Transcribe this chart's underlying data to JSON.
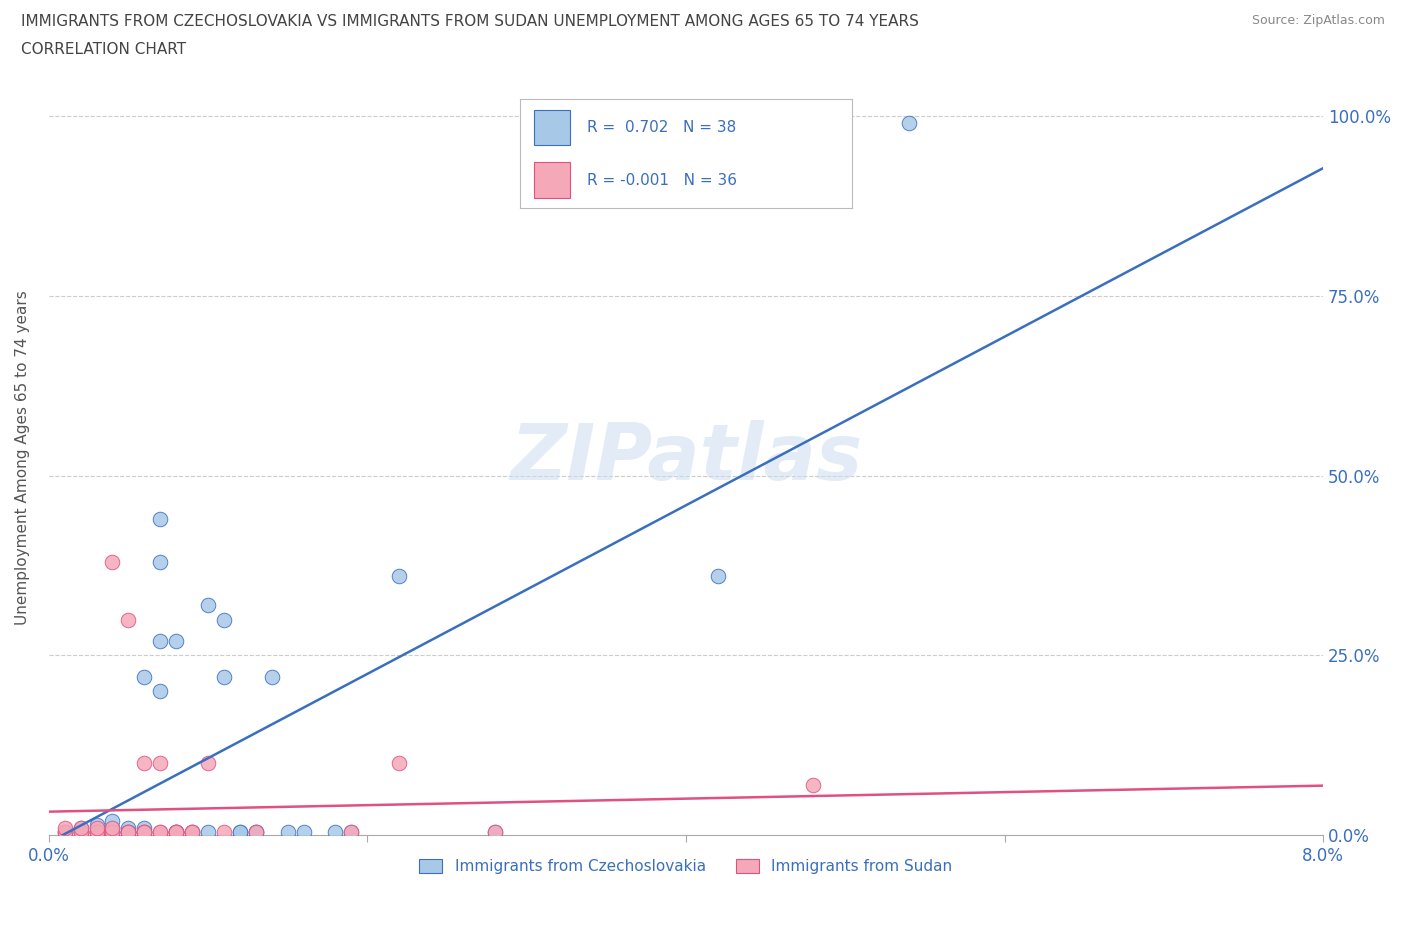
{
  "title_line1": "IMMIGRANTS FROM CZECHOSLOVAKIA VS IMMIGRANTS FROM SUDAN UNEMPLOYMENT AMONG AGES 65 TO 74 YEARS",
  "title_line2": "CORRELATION CHART",
  "source": "Source: ZipAtlas.com",
  "xlabel_label": "Immigrants from Czechoslovakia",
  "xlabel_label2": "Immigrants from Sudan",
  "ylabel": "Unemployment Among Ages 65 to 74 years",
  "xlim": [
    0.0,
    0.08
  ],
  "ylim": [
    0.0,
    1.05
  ],
  "x_ticks": [
    0.0,
    0.02,
    0.04,
    0.06,
    0.08
  ],
  "x_tick_labels": [
    "0.0%",
    "",
    "",
    "",
    "8.0%"
  ],
  "y_ticks": [
    0.0,
    0.25,
    0.5,
    0.75,
    1.0
  ],
  "y_tick_labels_right": [
    "0.0%",
    "25.0%",
    "50.0%",
    "75.0%",
    "100.0%"
  ],
  "r_czech": 0.702,
  "n_czech": 38,
  "r_sudan": -0.001,
  "n_sudan": 36,
  "color_czech": "#a8c8e8",
  "color_sudan": "#f4a8b8",
  "color_line_czech": "#3a6fbf",
  "color_line_sudan": "#e05080",
  "watermark": "ZIPatlas",
  "czech_scatter": [
    [
      0.001,
      0.005
    ],
    [
      0.002,
      0.01
    ],
    [
      0.003,
      0.005
    ],
    [
      0.003,
      0.015
    ],
    [
      0.004,
      0.005
    ],
    [
      0.004,
      0.01
    ],
    [
      0.004,
      0.02
    ],
    [
      0.005,
      0.005
    ],
    [
      0.005,
      0.01
    ],
    [
      0.005,
      0.005
    ],
    [
      0.006,
      0.005
    ],
    [
      0.006,
      0.01
    ],
    [
      0.006,
      0.22
    ],
    [
      0.007,
      0.44
    ],
    [
      0.007,
      0.38
    ],
    [
      0.007,
      0.27
    ],
    [
      0.007,
      0.2
    ],
    [
      0.008,
      0.005
    ],
    [
      0.008,
      0.005
    ],
    [
      0.008,
      0.27
    ],
    [
      0.009,
      0.005
    ],
    [
      0.01,
      0.005
    ],
    [
      0.01,
      0.32
    ],
    [
      0.011,
      0.22
    ],
    [
      0.011,
      0.3
    ],
    [
      0.012,
      0.005
    ],
    [
      0.012,
      0.005
    ],
    [
      0.013,
      0.005
    ],
    [
      0.013,
      0.005
    ],
    [
      0.014,
      0.22
    ],
    [
      0.015,
      0.005
    ],
    [
      0.016,
      0.005
    ],
    [
      0.018,
      0.005
    ],
    [
      0.019,
      0.005
    ],
    [
      0.022,
      0.36
    ],
    [
      0.028,
      0.005
    ],
    [
      0.042,
      0.36
    ],
    [
      0.054,
      0.99
    ]
  ],
  "sudan_scatter": [
    [
      0.001,
      0.005
    ],
    [
      0.001,
      0.005
    ],
    [
      0.001,
      0.01
    ],
    [
      0.002,
      0.005
    ],
    [
      0.002,
      0.005
    ],
    [
      0.002,
      0.01
    ],
    [
      0.003,
      0.005
    ],
    [
      0.003,
      0.005
    ],
    [
      0.003,
      0.005
    ],
    [
      0.003,
      0.01
    ],
    [
      0.004,
      0.005
    ],
    [
      0.004,
      0.005
    ],
    [
      0.004,
      0.01
    ],
    [
      0.004,
      0.38
    ],
    [
      0.005,
      0.005
    ],
    [
      0.005,
      0.005
    ],
    [
      0.005,
      0.3
    ],
    [
      0.006,
      0.005
    ],
    [
      0.006,
      0.005
    ],
    [
      0.006,
      0.005
    ],
    [
      0.006,
      0.1
    ],
    [
      0.007,
      0.005
    ],
    [
      0.007,
      0.005
    ],
    [
      0.007,
      0.1
    ],
    [
      0.008,
      0.005
    ],
    [
      0.008,
      0.005
    ],
    [
      0.008,
      0.005
    ],
    [
      0.009,
      0.005
    ],
    [
      0.009,
      0.005
    ],
    [
      0.01,
      0.1
    ],
    [
      0.011,
      0.005
    ],
    [
      0.013,
      0.005
    ],
    [
      0.019,
      0.005
    ],
    [
      0.022,
      0.1
    ],
    [
      0.028,
      0.005
    ],
    [
      0.048,
      0.07
    ]
  ],
  "background_color": "#ffffff",
  "grid_color": "#cccccc"
}
